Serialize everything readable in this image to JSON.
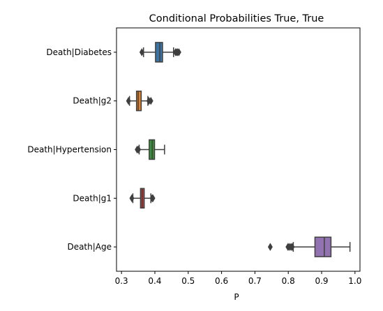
{
  "chart_data": {
    "type": "boxplot",
    "orientation": "horizontal",
    "title": "Conditional Probabilities True, True",
    "xlabel": "P",
    "ylabel": "",
    "xlim": [
      0.285,
      1.015
    ],
    "xticks": [
      0.3,
      0.4,
      0.5,
      0.6,
      0.7,
      0.8,
      0.9,
      1.0
    ],
    "xtick_labels": [
      "0.3",
      "0.4",
      "0.5",
      "0.6",
      "0.7",
      "0.8",
      "0.9",
      "1.0"
    ],
    "grid": false,
    "legend": "none",
    "categories": [
      "Death|Diabetes",
      "Death|g2",
      "Death|Hypertension",
      "Death|g1",
      "Death|Age"
    ],
    "series": [
      {
        "category": "Death|Diabetes",
        "color": "#3a75a6",
        "whisker_low": 0.366,
        "q1": 0.402,
        "median": 0.415,
        "q3": 0.423,
        "whisker_high": 0.456,
        "outliers": [
          0.361,
          0.462,
          0.465,
          0.468,
          0.472
        ]
      },
      {
        "category": "Death|g2",
        "color": "#e1812c",
        "whisker_low": 0.324,
        "q1": 0.345,
        "median": 0.35,
        "q3": 0.359,
        "whisker_high": 0.379,
        "outliers": [
          0.321,
          0.382,
          0.388
        ]
      },
      {
        "category": "Death|Hypertension",
        "color": "#3a923a",
        "whisker_low": 0.353,
        "q1": 0.383,
        "median": 0.392,
        "q3": 0.399,
        "whisker_high": 0.429,
        "outliers": [
          0.347,
          0.351
        ]
      },
      {
        "category": "Death|g1",
        "color": "#c03d3e",
        "whisker_low": 0.334,
        "q1": 0.357,
        "median": 0.362,
        "q3": 0.368,
        "whisker_high": 0.388,
        "outliers": [
          0.331,
          0.392,
          0.394
        ]
      },
      {
        "category": "Death|Age",
        "color": "#9372b2",
        "whisker_low": 0.815,
        "q1": 0.88,
        "median": 0.908,
        "q3": 0.928,
        "whisker_high": 0.985,
        "outliers": [
          0.746,
          0.799,
          0.803,
          0.808,
          0.812
        ]
      }
    ]
  }
}
